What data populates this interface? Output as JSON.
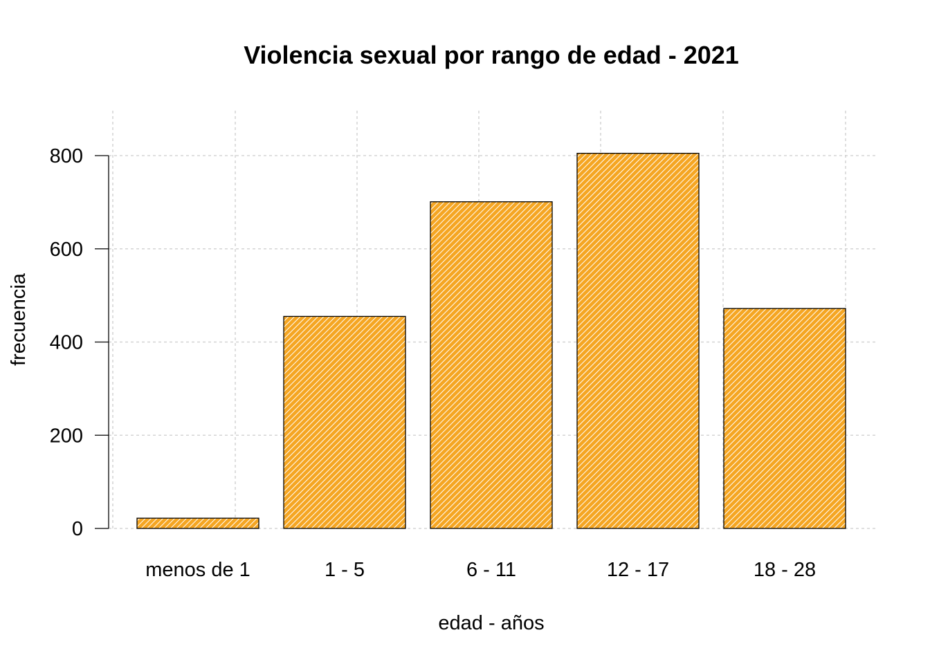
{
  "chart_data": {
    "type": "bar",
    "title": "Violencia sexual por rango de edad - 2021",
    "xlabel": "edad - años",
    "ylabel": "frecuencia",
    "categories": [
      "menos de 1",
      "1 - 5",
      "6 - 11",
      "12 - 17",
      "18 - 28"
    ],
    "values": [
      22,
      455,
      701,
      805,
      472
    ],
    "ylim": [
      0,
      900
    ],
    "yticks": [
      0,
      200,
      400,
      600,
      800
    ],
    "grid": true,
    "bar_color": "#f5a623",
    "hatch_color": "#ffffff",
    "hatch": "diagonal"
  }
}
